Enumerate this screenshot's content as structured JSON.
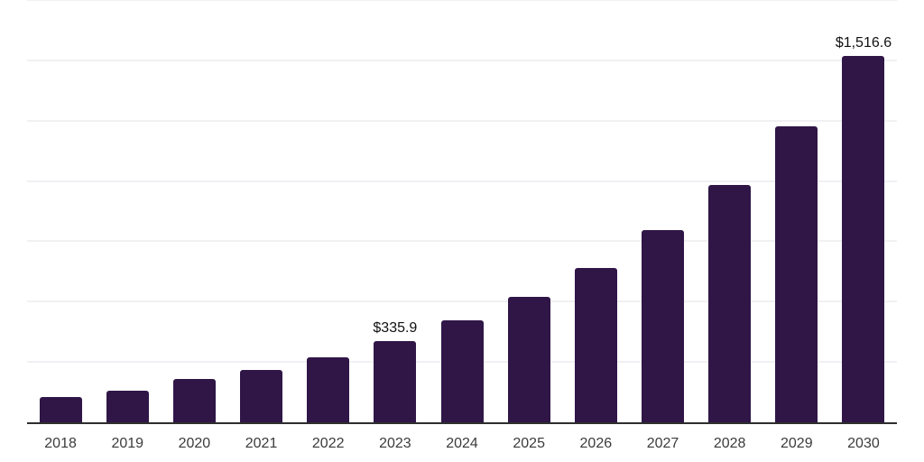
{
  "chart_data": {
    "type": "bar",
    "title": "",
    "categories": [
      "2018",
      "2019",
      "2020",
      "2021",
      "2022",
      "2023",
      "2024",
      "2025",
      "2026",
      "2027",
      "2028",
      "2029",
      "2030"
    ],
    "values": [
      105,
      130,
      178,
      217,
      270,
      335.9,
      421,
      519,
      641,
      797,
      985,
      1225,
      1516.6
    ],
    "annotations": {
      "2023": "$335.9",
      "2030": "$1,516.6"
    },
    "xlabel": "",
    "ylabel": "",
    "ylim": [
      0,
      1750
    ],
    "gridline_values": [
      250,
      500,
      750,
      1000,
      1250,
      1500,
      1750
    ],
    "grid": "horizontal",
    "legend": "none",
    "colors": {
      "bar": "#2f1647",
      "grid": "#f1f1f4",
      "axis": "#2e2e2e",
      "tick_label": "#3b3b3b",
      "value_label": "#111111",
      "background": "#ffffff"
    }
  }
}
